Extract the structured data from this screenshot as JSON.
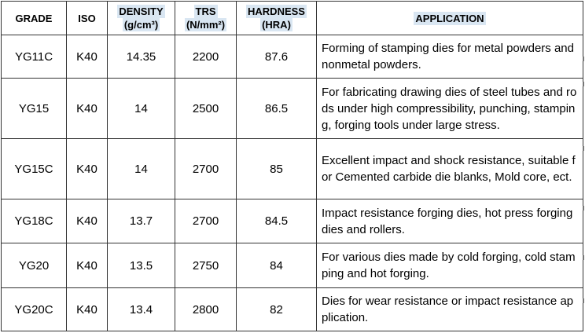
{
  "table": {
    "headers": {
      "grade": "GRADE",
      "iso": "ISO",
      "density_1": "DENSITY",
      "density_2": "(g/cm³)",
      "trs_1": "TRS",
      "trs_2": "(N/mm²)",
      "hardness_1": "HARDNESS",
      "hardness_2": "(HRA)",
      "application": "APPLICATION"
    },
    "rows": [
      {
        "grade": "YG11C",
        "iso": "K40",
        "density": "14.35",
        "trs": "2200",
        "hardness": "87.6",
        "application": "Forming of stamping dies for metal powders and nonmetal powders."
      },
      {
        "grade": "YG15",
        "iso": "K40",
        "density": "14",
        "trs": "2500",
        "hardness": "86.5",
        "application": "For fabricating drawing dies of steel tubes and rods under high compressibility, punching, stamping, forging tools under large stress."
      },
      {
        "grade": "YG15C",
        "iso": "K40",
        "density": "14",
        "trs": "2700",
        "hardness": "85",
        "application": "Excellent impact and shock resistance, suitable for Cemented carbide die blanks, Mold core, ect."
      },
      {
        "grade": "YG18C",
        "iso": "K40",
        "density": "13.7",
        "trs": "2700",
        "hardness": "84.5",
        "application": "Impact resistance forging dies, hot press forging dies and rollers."
      },
      {
        "grade": "YG20",
        "iso": "K40",
        "density": "13.5",
        "trs": "2750",
        "hardness": "84",
        "application": "For various dies made by cold forging, cold stamping and hot forging."
      },
      {
        "grade": "YG20C",
        "iso": "K40",
        "density": "13.4",
        "trs": "2800",
        "hardness": "82",
        "application": "Dies for wear resistance or impact resistance application."
      }
    ]
  }
}
